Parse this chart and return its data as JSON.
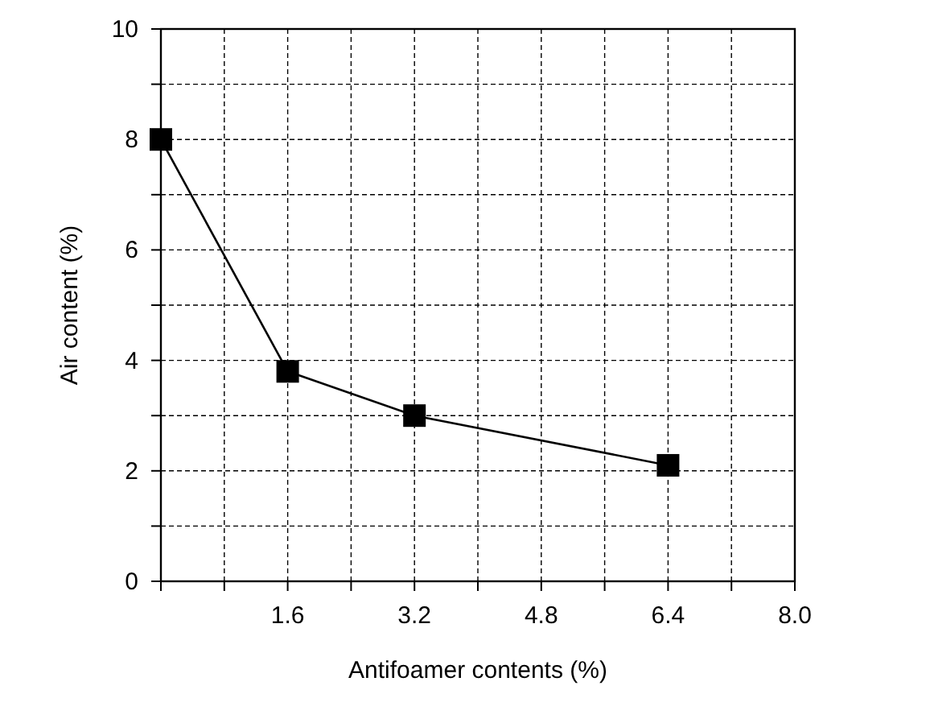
{
  "chart_data": {
    "type": "line",
    "xlabel": "Antifoamer contents (%)",
    "ylabel": "Air content (%)",
    "x": [
      0,
      1.6,
      3.2,
      6.4
    ],
    "values": [
      8,
      3.8,
      3.0,
      2.1
    ],
    "color": "#000000",
    "marker": "square",
    "line_style": "solid",
    "grid": true,
    "xlim": [
      0,
      8
    ],
    "ylim": [
      0,
      10
    ],
    "xticks": [
      {
        "value": 0,
        "label": null
      },
      {
        "value": 0.8,
        "label": null
      },
      {
        "value": 1.6,
        "label": "1.6"
      },
      {
        "value": 2.4,
        "label": null
      },
      {
        "value": 3.2,
        "label": "3.2"
      },
      {
        "value": 4,
        "label": null
      },
      {
        "value": 4.8,
        "label": "4.8"
      },
      {
        "value": 5.6,
        "label": null
      },
      {
        "value": 6.4,
        "label": "6.4"
      },
      {
        "value": 7.2,
        "label": null
      },
      {
        "value": 8,
        "label": "8.0"
      }
    ],
    "yticks": [
      0,
      {
        "value": 1,
        "label": null
      },
      2,
      {
        "value": 3,
        "label": null
      },
      4,
      {
        "value": 5,
        "label": null
      },
      6,
      {
        "value": 7,
        "label": null
      },
      8,
      {
        "value": 9,
        "label": null
      },
      10
    ]
  }
}
